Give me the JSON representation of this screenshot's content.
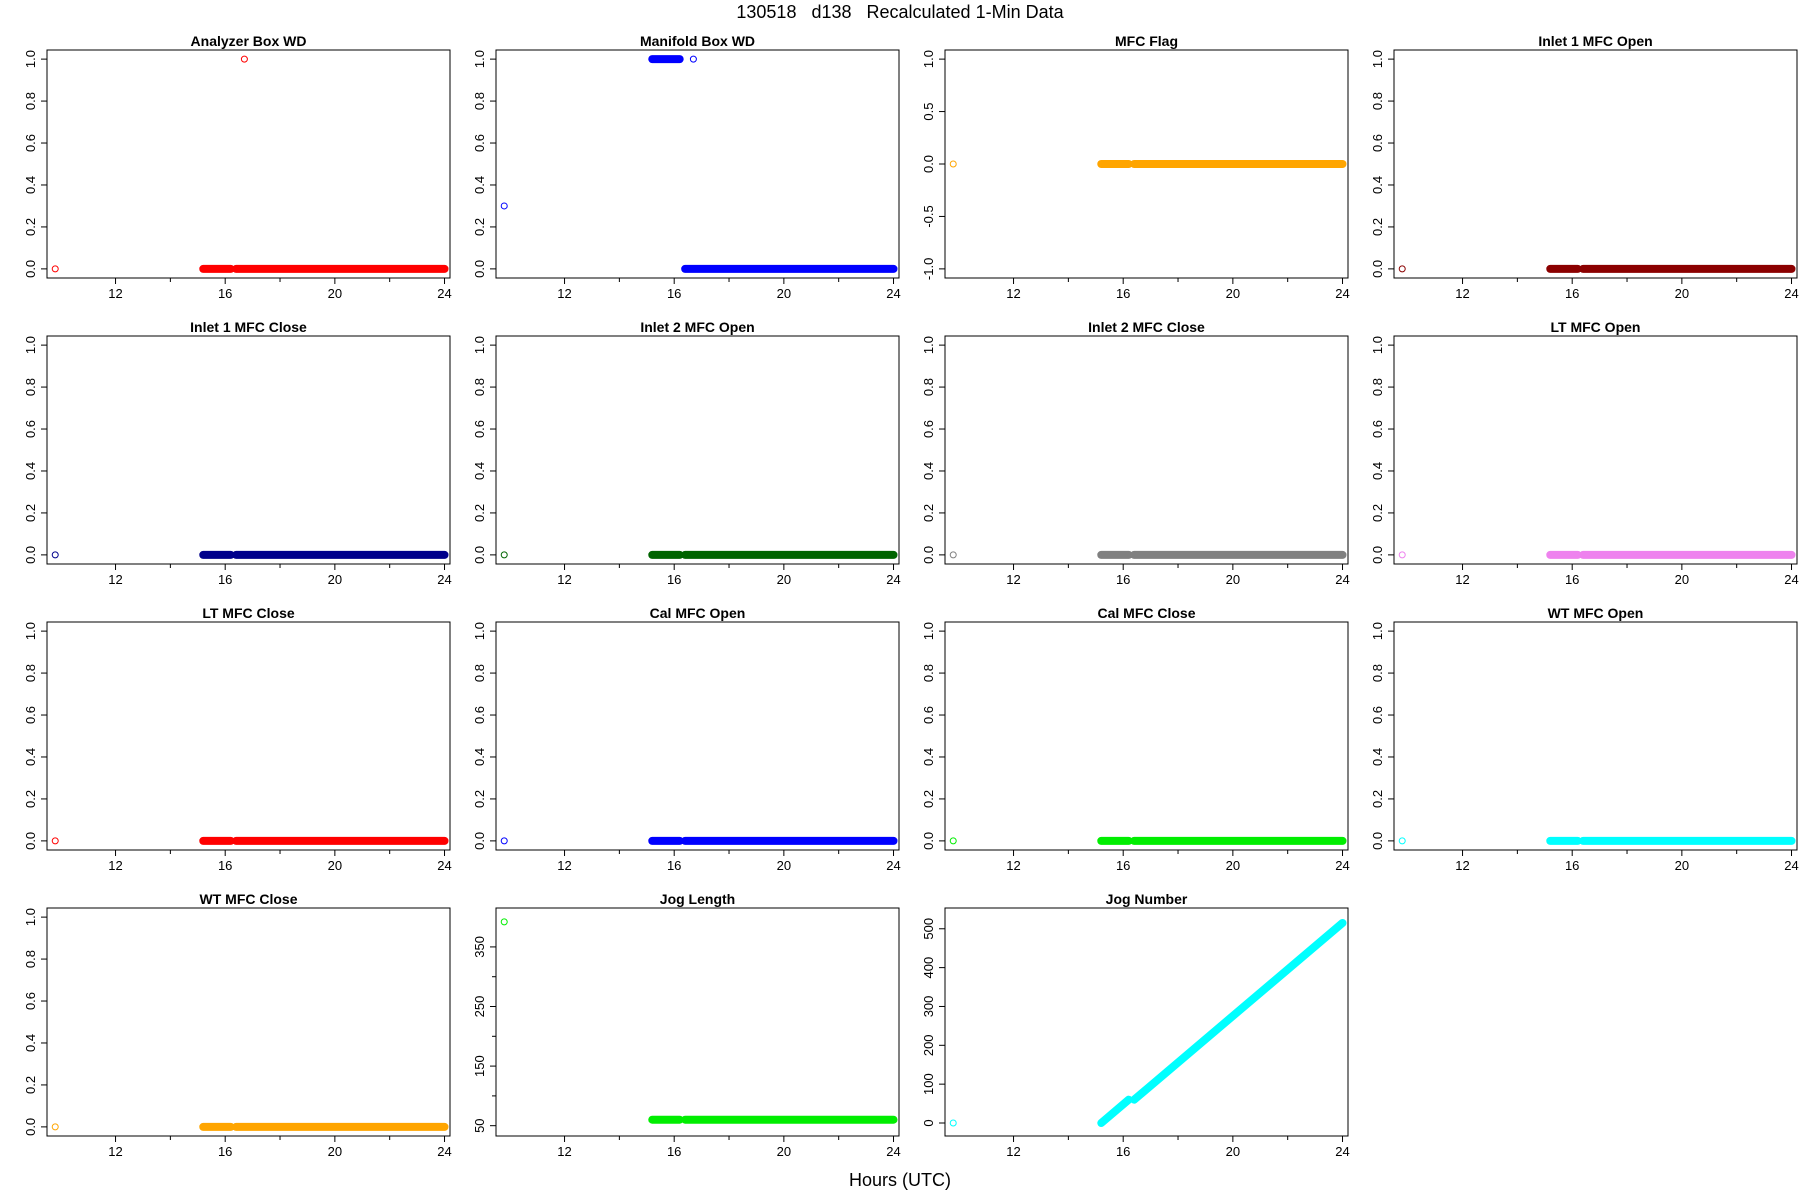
{
  "title": "130518   d138   Recalculated 1-Min Data",
  "xlabel": "Hours (UTC)",
  "chart_data": [
    {
      "type": "scatter",
      "title": "Analyzer Box WD",
      "color": "#ff0000",
      "ylim": [
        0,
        1
      ],
      "yticks": [
        0.0,
        0.2,
        0.4,
        0.6,
        0.8,
        1.0
      ],
      "ytick_labels": [
        "0.0",
        "0.2",
        "0.4",
        "0.6",
        "0.8",
        "1.0"
      ],
      "xlim": [
        9.5,
        24.2
      ],
      "xticks": [
        12,
        16,
        20,
        24
      ],
      "xtick_labels": [
        "12",
        "16",
        "20",
        "24"
      ],
      "points": [
        {
          "x": 9.8,
          "y": 0
        }
      ],
      "extra_points": [
        {
          "x": 16.7,
          "y": 1
        }
      ],
      "segments": [
        {
          "x0": 15.2,
          "x1": 16.2,
          "y0": 0,
          "y1": 0
        },
        {
          "x0": 16.4,
          "x1": 24.0,
          "y0": 0,
          "y1": 0
        }
      ]
    },
    {
      "type": "scatter",
      "title": "Manifold Box WD",
      "color": "#0000ff",
      "ylim": [
        0,
        1
      ],
      "yticks": [
        0.0,
        0.2,
        0.4,
        0.6,
        0.8,
        1.0
      ],
      "ytick_labels": [
        "0.0",
        "0.2",
        "0.4",
        "0.6",
        "0.8",
        "1.0"
      ],
      "xlim": [
        9.5,
        24.2
      ],
      "xticks": [
        12,
        16,
        20,
        24
      ],
      "xtick_labels": [
        "12",
        "16",
        "20",
        "24"
      ],
      "points": [
        {
          "x": 9.8,
          "y": 0.3
        }
      ],
      "extra_points": [
        {
          "x": 16.7,
          "y": 1
        }
      ],
      "segments": [
        {
          "x0": 15.2,
          "x1": 16.2,
          "y0": 1,
          "y1": 1
        },
        {
          "x0": 16.4,
          "x1": 24.0,
          "y0": 0,
          "y1": 0
        }
      ]
    },
    {
      "type": "scatter",
      "title": "MFC Flag",
      "color": "#ffa500",
      "ylim": [
        -1,
        1
      ],
      "yticks": [
        -1.0,
        -0.5,
        0.0,
        0.5,
        1.0
      ],
      "ytick_labels": [
        "-1.0",
        "-0.5",
        "0.0",
        "0.5",
        "1.0"
      ],
      "xlim": [
        9.5,
        24.2
      ],
      "xticks": [
        12,
        16,
        20,
        24
      ],
      "xtick_labels": [
        "12",
        "16",
        "20",
        "24"
      ],
      "points": [
        {
          "x": 9.8,
          "y": 0
        }
      ],
      "extra_points": [],
      "segments": [
        {
          "x0": 15.2,
          "x1": 16.2,
          "y0": 0,
          "y1": 0
        },
        {
          "x0": 16.4,
          "x1": 24.0,
          "y0": 0,
          "y1": 0
        }
      ]
    },
    {
      "type": "scatter",
      "title": "Inlet 1 MFC Open",
      "color": "#8b0000",
      "ylim": [
        0,
        1
      ],
      "yticks": [
        0.0,
        0.2,
        0.4,
        0.6,
        0.8,
        1.0
      ],
      "ytick_labels": [
        "0.0",
        "0.2",
        "0.4",
        "0.6",
        "0.8",
        "1.0"
      ],
      "xlim": [
        9.5,
        24.2
      ],
      "xticks": [
        12,
        16,
        20,
        24
      ],
      "xtick_labels": [
        "12",
        "16",
        "20",
        "24"
      ],
      "points": [
        {
          "x": 9.8,
          "y": 0
        }
      ],
      "extra_points": [],
      "segments": [
        {
          "x0": 15.2,
          "x1": 16.2,
          "y0": 0,
          "y1": 0
        },
        {
          "x0": 16.4,
          "x1": 24.0,
          "y0": 0,
          "y1": 0
        }
      ]
    },
    {
      "type": "scatter",
      "title": "Inlet 1 MFC Close",
      "color": "#00008b",
      "ylim": [
        0,
        1
      ],
      "yticks": [
        0.0,
        0.2,
        0.4,
        0.6,
        0.8,
        1.0
      ],
      "ytick_labels": [
        "0.0",
        "0.2",
        "0.4",
        "0.6",
        "0.8",
        "1.0"
      ],
      "xlim": [
        9.5,
        24.2
      ],
      "xticks": [
        12,
        16,
        20,
        24
      ],
      "xtick_labels": [
        "12",
        "16",
        "20",
        "24"
      ],
      "points": [
        {
          "x": 9.8,
          "y": 0
        }
      ],
      "extra_points": [],
      "segments": [
        {
          "x0": 15.2,
          "x1": 16.2,
          "y0": 0,
          "y1": 0
        },
        {
          "x0": 16.4,
          "x1": 24.0,
          "y0": 0,
          "y1": 0
        }
      ]
    },
    {
      "type": "scatter",
      "title": "Inlet 2 MFC Open",
      "color": "#006400",
      "ylim": [
        0,
        1
      ],
      "yticks": [
        0.0,
        0.2,
        0.4,
        0.6,
        0.8,
        1.0
      ],
      "ytick_labels": [
        "0.0",
        "0.2",
        "0.4",
        "0.6",
        "0.8",
        "1.0"
      ],
      "xlim": [
        9.5,
        24.2
      ],
      "xticks": [
        12,
        16,
        20,
        24
      ],
      "xtick_labels": [
        "12",
        "16",
        "20",
        "24"
      ],
      "points": [
        {
          "x": 9.8,
          "y": 0
        }
      ],
      "extra_points": [],
      "segments": [
        {
          "x0": 15.2,
          "x1": 16.2,
          "y0": 0,
          "y1": 0
        },
        {
          "x0": 16.4,
          "x1": 24.0,
          "y0": 0,
          "y1": 0
        }
      ]
    },
    {
      "type": "scatter",
      "title": "Inlet 2 MFC Close",
      "color": "#808080",
      "ylim": [
        0,
        1
      ],
      "yticks": [
        0.0,
        0.2,
        0.4,
        0.6,
        0.8,
        1.0
      ],
      "ytick_labels": [
        "0.0",
        "0.2",
        "0.4",
        "0.6",
        "0.8",
        "1.0"
      ],
      "xlim": [
        9.5,
        24.2
      ],
      "xticks": [
        12,
        16,
        20,
        24
      ],
      "xtick_labels": [
        "12",
        "16",
        "20",
        "24"
      ],
      "points": [
        {
          "x": 9.8,
          "y": 0
        }
      ],
      "extra_points": [],
      "segments": [
        {
          "x0": 15.2,
          "x1": 16.2,
          "y0": 0,
          "y1": 0
        },
        {
          "x0": 16.4,
          "x1": 24.0,
          "y0": 0,
          "y1": 0
        }
      ]
    },
    {
      "type": "scatter",
      "title": "LT MFC Open",
      "color": "#ee82ee",
      "ylim": [
        0,
        1
      ],
      "yticks": [
        0.0,
        0.2,
        0.4,
        0.6,
        0.8,
        1.0
      ],
      "ytick_labels": [
        "0.0",
        "0.2",
        "0.4",
        "0.6",
        "0.8",
        "1.0"
      ],
      "xlim": [
        9.5,
        24.2
      ],
      "xticks": [
        12,
        16,
        20,
        24
      ],
      "xtick_labels": [
        "12",
        "16",
        "20",
        "24"
      ],
      "points": [
        {
          "x": 9.8,
          "y": 0
        }
      ],
      "extra_points": [],
      "segments": [
        {
          "x0": 15.2,
          "x1": 16.2,
          "y0": 0,
          "y1": 0
        },
        {
          "x0": 16.4,
          "x1": 24.0,
          "y0": 0,
          "y1": 0
        }
      ]
    },
    {
      "type": "scatter",
      "title": "LT MFC Close",
      "color": "#ff0000",
      "ylim": [
        0,
        1
      ],
      "yticks": [
        0.0,
        0.2,
        0.4,
        0.6,
        0.8,
        1.0
      ],
      "ytick_labels": [
        "0.0",
        "0.2",
        "0.4",
        "0.6",
        "0.8",
        "1.0"
      ],
      "xlim": [
        9.5,
        24.2
      ],
      "xticks": [
        12,
        16,
        20,
        24
      ],
      "xtick_labels": [
        "12",
        "16",
        "20",
        "24"
      ],
      "points": [
        {
          "x": 9.8,
          "y": 0
        }
      ],
      "extra_points": [],
      "segments": [
        {
          "x0": 15.2,
          "x1": 16.2,
          "y0": 0,
          "y1": 0
        },
        {
          "x0": 16.4,
          "x1": 24.0,
          "y0": 0,
          "y1": 0
        }
      ]
    },
    {
      "type": "scatter",
      "title": "Cal MFC Open",
      "color": "#0000ff",
      "ylim": [
        0,
        1
      ],
      "yticks": [
        0.0,
        0.2,
        0.4,
        0.6,
        0.8,
        1.0
      ],
      "ytick_labels": [
        "0.0",
        "0.2",
        "0.4",
        "0.6",
        "0.8",
        "1.0"
      ],
      "xlim": [
        9.5,
        24.2
      ],
      "xticks": [
        12,
        16,
        20,
        24
      ],
      "xtick_labels": [
        "12",
        "16",
        "20",
        "24"
      ],
      "points": [
        {
          "x": 9.8,
          "y": 0
        }
      ],
      "extra_points": [],
      "segments": [
        {
          "x0": 15.2,
          "x1": 16.2,
          "y0": 0,
          "y1": 0
        },
        {
          "x0": 16.4,
          "x1": 24.0,
          "y0": 0,
          "y1": 0
        }
      ]
    },
    {
      "type": "scatter",
      "title": "Cal MFC Close",
      "color": "#00ee00",
      "ylim": [
        0,
        1
      ],
      "yticks": [
        0.0,
        0.2,
        0.4,
        0.6,
        0.8,
        1.0
      ],
      "ytick_labels": [
        "0.0",
        "0.2",
        "0.4",
        "0.6",
        "0.8",
        "1.0"
      ],
      "xlim": [
        9.5,
        24.2
      ],
      "xticks": [
        12,
        16,
        20,
        24
      ],
      "xtick_labels": [
        "12",
        "16",
        "20",
        "24"
      ],
      "points": [
        {
          "x": 9.8,
          "y": 0
        }
      ],
      "extra_points": [],
      "segments": [
        {
          "x0": 15.2,
          "x1": 16.2,
          "y0": 0,
          "y1": 0
        },
        {
          "x0": 16.4,
          "x1": 24.0,
          "y0": 0,
          "y1": 0
        }
      ]
    },
    {
      "type": "scatter",
      "title": "WT MFC Open",
      "color": "#00ffff",
      "ylim": [
        0,
        1
      ],
      "yticks": [
        0.0,
        0.2,
        0.4,
        0.6,
        0.8,
        1.0
      ],
      "ytick_labels": [
        "0.0",
        "0.2",
        "0.4",
        "0.6",
        "0.8",
        "1.0"
      ],
      "xlim": [
        9.5,
        24.2
      ],
      "xticks": [
        12,
        16,
        20,
        24
      ],
      "xtick_labels": [
        "12",
        "16",
        "20",
        "24"
      ],
      "points": [
        {
          "x": 9.8,
          "y": 0
        }
      ],
      "extra_points": [],
      "segments": [
        {
          "x0": 15.2,
          "x1": 16.2,
          "y0": 0,
          "y1": 0
        },
        {
          "x0": 16.4,
          "x1": 24.0,
          "y0": 0,
          "y1": 0
        }
      ]
    },
    {
      "type": "scatter",
      "title": "WT MFC Close",
      "color": "#ffa500",
      "ylim": [
        0,
        1
      ],
      "yticks": [
        0.0,
        0.2,
        0.4,
        0.6,
        0.8,
        1.0
      ],
      "ytick_labels": [
        "0.0",
        "0.2",
        "0.4",
        "0.6",
        "0.8",
        "1.0"
      ],
      "xlim": [
        9.5,
        24.2
      ],
      "xticks": [
        12,
        16,
        20,
        24
      ],
      "xtick_labels": [
        "12",
        "16",
        "20",
        "24"
      ],
      "points": [
        {
          "x": 9.8,
          "y": 0
        }
      ],
      "extra_points": [],
      "segments": [
        {
          "x0": 15.2,
          "x1": 16.2,
          "y0": 0,
          "y1": 0
        },
        {
          "x0": 16.4,
          "x1": 24.0,
          "y0": 0,
          "y1": 0
        }
      ]
    },
    {
      "type": "scatter",
      "title": "Jog Length",
      "color": "#00ee00",
      "ylim": [
        48,
        400
      ],
      "yticks": [
        50,
        150,
        250,
        350
      ],
      "ytick_labels": [
        "50",
        "150",
        "250",
        "350"
      ],
      "minor_yticks": [
        100,
        200,
        300
      ],
      "xlim": [
        9.5,
        24.2
      ],
      "xticks": [
        12,
        16,
        20,
        24
      ],
      "xtick_labels": [
        "12",
        "16",
        "20",
        "24"
      ],
      "points": [
        {
          "x": 9.8,
          "y": 392
        }
      ],
      "extra_points": [],
      "segments": [
        {
          "x0": 15.2,
          "x1": 16.2,
          "y0": 60,
          "y1": 60
        },
        {
          "x0": 16.4,
          "x1": 24.0,
          "y0": 60,
          "y1": 60
        }
      ]
    },
    {
      "type": "scatter",
      "title": "Jog Number",
      "color": "#00ffff",
      "ylim": [
        -10,
        530
      ],
      "yticks": [
        0,
        100,
        200,
        300,
        400,
        500
      ],
      "ytick_labels": [
        "0",
        "100",
        "200",
        "300",
        "400",
        "500"
      ],
      "xlim": [
        9.5,
        24.2
      ],
      "xticks": [
        12,
        16,
        20,
        24
      ],
      "xtick_labels": [
        "12",
        "16",
        "20",
        "24"
      ],
      "points": [
        {
          "x": 9.8,
          "y": 0
        }
      ],
      "extra_points": [],
      "segments": [
        {
          "x0": 15.2,
          "x1": 16.2,
          "y0": 0,
          "y1": 60
        },
        {
          "x0": 16.4,
          "x1": 24.0,
          "y0": 60,
          "y1": 515
        }
      ]
    }
  ]
}
